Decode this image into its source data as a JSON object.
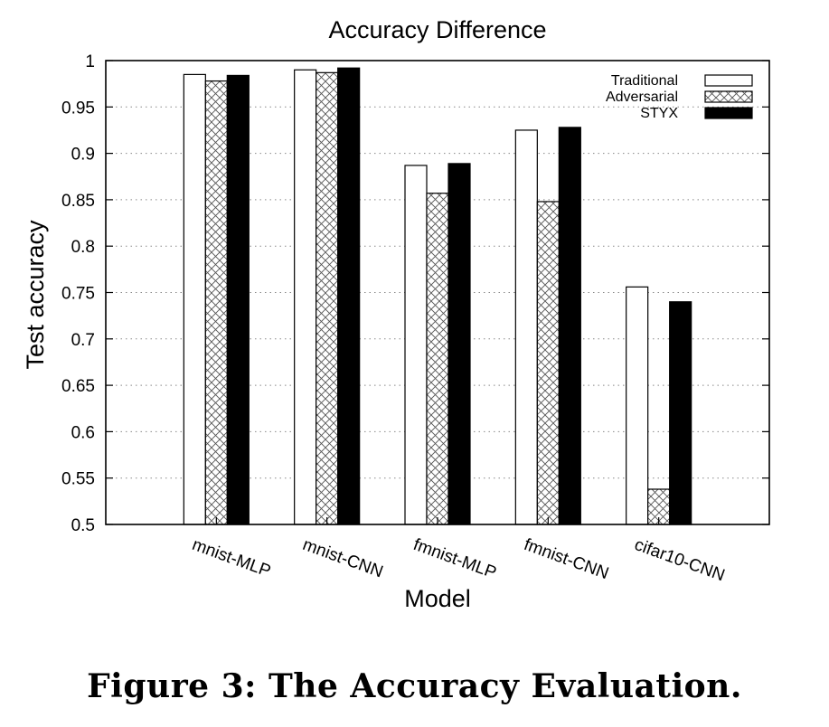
{
  "chart_data": {
    "type": "bar",
    "title": "Accuracy Difference",
    "xlabel": "Model",
    "ylabel": "Test accuracy",
    "ylim": [
      0.5,
      1.0
    ],
    "yticks": [
      "0.5",
      "0.55",
      "0.6",
      "0.65",
      "0.7",
      "0.75",
      "0.8",
      "0.85",
      "0.9",
      "0.95",
      "1"
    ],
    "categories": [
      "mnist-MLP",
      "mnist-CNN",
      "fmnist-MLP",
      "fmnist-CNN",
      "cifar10-CNN"
    ],
    "series": [
      {
        "name": "Traditional",
        "pattern": "empty",
        "values": [
          0.985,
          0.99,
          0.887,
          0.925,
          0.756
        ]
      },
      {
        "name": "Adversarial",
        "pattern": "crosshatch",
        "values": [
          0.978,
          0.987,
          0.857,
          0.848,
          0.538
        ]
      },
      {
        "name": "STYX",
        "pattern": "solid",
        "values": [
          0.984,
          0.992,
          0.889,
          0.928,
          0.74
        ]
      }
    ],
    "grid": true,
    "legend_position": "top-right",
    "colors": {
      "bar_fill": "#000000",
      "bar_stroke": "#000000",
      "hatch": "#555555",
      "grid": "#888888"
    }
  },
  "caption": "Figure 3: The Accuracy Evaluation."
}
